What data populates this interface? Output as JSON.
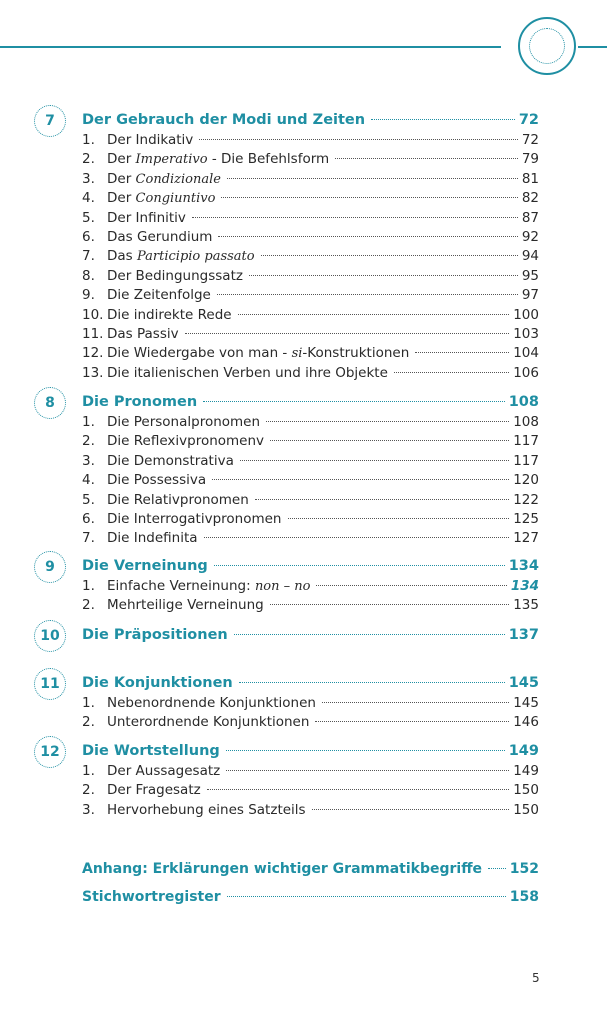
{
  "chapters": [
    {
      "badge": "7",
      "title": "Der Gebrauch der Modi und Zeiten",
      "page": "72",
      "items": [
        {
          "num": "1.",
          "pre": "Der Indikativ",
          "page": "72"
        },
        {
          "num": "2.",
          "pre": "Der ",
          "it": "Imperativo",
          "post": " - Die Befehlsform",
          "page": "79"
        },
        {
          "num": "3.",
          "pre": "Der ",
          "it": "Condizionale",
          "page": "81"
        },
        {
          "num": "4.",
          "pre": "Der ",
          "it": "Congiuntivo",
          "page": "82"
        },
        {
          "num": "5.",
          "pre": "Der Infinitiv",
          "page": "87"
        },
        {
          "num": "6.",
          "pre": "Das Gerundium",
          "page": "92"
        },
        {
          "num": "7.",
          "pre": "Das ",
          "it": "Participio passato",
          "page": "94"
        },
        {
          "num": "8.",
          "pre": "Der Bedingungssatz",
          "page": "95"
        },
        {
          "num": "9.",
          "pre": "Die Zeitenfolge",
          "page": "97"
        },
        {
          "num": "10.",
          "pre": "Die indirekte Rede",
          "page": "100"
        },
        {
          "num": "11.",
          "pre": "Das Passiv",
          "page": "103"
        },
        {
          "num": "12.",
          "pre": "Die Wiedergabe von man - ",
          "it": "si",
          "post": "-Konstruktionen",
          "page": "104"
        },
        {
          "num": "13.",
          "pre": "Die italienischen Verben und ihre Objekte",
          "page": "106"
        }
      ]
    },
    {
      "badge": "8",
      "title": "Die Pronomen",
      "page": "108",
      "items": [
        {
          "num": "1.",
          "pre": "Die Personalpronomen",
          "page": "108"
        },
        {
          "num": "2.",
          "pre": "Die Reflexivpronomenv",
          "page": "117"
        },
        {
          "num": "3.",
          "pre": "Die Demonstrativa",
          "page": "117"
        },
        {
          "num": "4.",
          "pre": "Die Possessiva",
          "page": "120"
        },
        {
          "num": "5.",
          "pre": "Die Relativpronomen",
          "page": "122"
        },
        {
          "num": "6.",
          "pre": "Die Interrogativpronomen",
          "page": "125"
        },
        {
          "num": "7.",
          "pre": "Die Indefinita",
          "page": "127"
        }
      ]
    },
    {
      "badge": "9",
      "title": "Die Verneinung",
      "page": "134",
      "items": [
        {
          "num": "1.",
          "pre": "Einfache Verneinung: ",
          "it": "non – no",
          "page": "134",
          "accent": true
        },
        {
          "num": "2.",
          "pre": "Mehrteilige Verneinung",
          "page": "135"
        }
      ]
    },
    {
      "badge": "10",
      "title": "Die Präpositionen",
      "page": "137",
      "items": []
    },
    {
      "badge": "11",
      "title": "Die Konjunktionen",
      "page": "145",
      "items": [
        {
          "num": "1.",
          "pre": "Nebenordnende Konjunktionen",
          "page": "145"
        },
        {
          "num": "2.",
          "pre": "Unterordnende Konjunktionen",
          "page": "146"
        }
      ]
    },
    {
      "badge": "12",
      "title": "Die Wortstellung",
      "page": "149",
      "items": [
        {
          "num": "1.",
          "pre": "Der Aussagesatz",
          "page": "149"
        },
        {
          "num": "2.",
          "pre": "Der Fragesatz",
          "page": "150"
        },
        {
          "num": "3.",
          "pre": "Hervorhebung eines Satzteils",
          "page": "150"
        }
      ]
    }
  ],
  "appendix": [
    {
      "title": "Anhang: Erklärungen wichtiger Grammatikbegriffe",
      "page": "152"
    },
    {
      "title": "Stichwortregister",
      "page": "158"
    }
  ],
  "page_number": "5",
  "colors": {
    "accent": "#1f8fa3",
    "text": "#2a2a2a"
  }
}
